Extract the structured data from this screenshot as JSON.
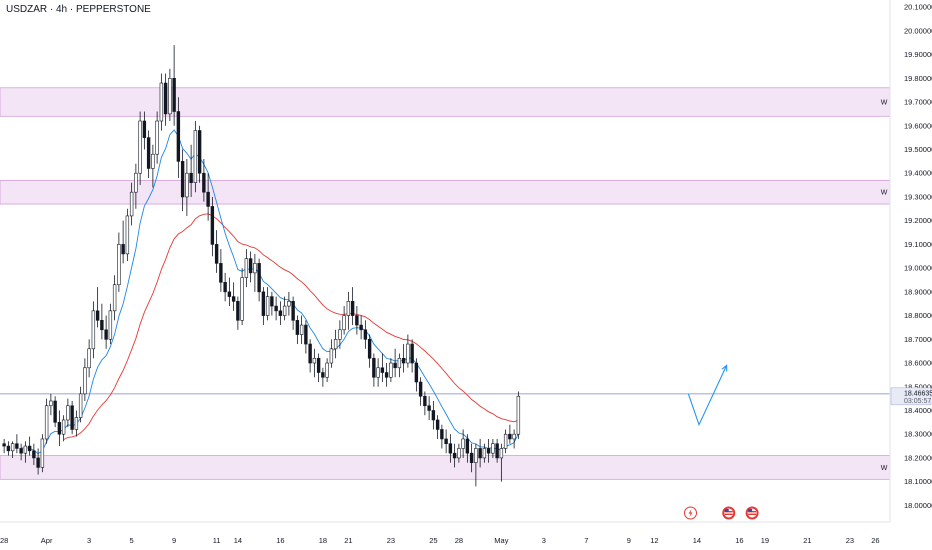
{
  "chart_data": {
    "type": "candlestick",
    "title": "USDZAR · 4h · PEPPERSTONE",
    "ylim": [
      17.93,
      20.13
    ],
    "y_ticks": [
      "20.10000",
      "20.00000",
      "19.90000",
      "19.80000",
      "19.70000",
      "19.60000",
      "19.50000",
      "19.40000",
      "19.30000",
      "19.20000",
      "19.10000",
      "19.00000",
      "18.90000",
      "18.80000",
      "18.70000",
      "18.60000",
      "18.50000",
      "18.40000",
      "18.30000",
      "18.20000",
      "18.10000",
      "18.00000"
    ],
    "x_ticks": [
      {
        "label": "28",
        "x": 0
      },
      {
        "label": "Apr",
        "x": 10
      },
      {
        "label": "3",
        "x": 20
      },
      {
        "label": "5",
        "x": 30
      },
      {
        "label": "9",
        "x": 40
      },
      {
        "label": "11",
        "x": 50
      },
      {
        "label": "14",
        "x": 55
      },
      {
        "label": "16",
        "x": 65
      },
      {
        "label": "18",
        "x": 75
      },
      {
        "label": "21",
        "x": 81
      },
      {
        "label": "23",
        "x": 91
      },
      {
        "label": "25",
        "x": 101
      },
      {
        "label": "28",
        "x": 107
      },
      {
        "label": "May",
        "x": 117
      },
      {
        "label": "3",
        "x": 127
      },
      {
        "label": "7",
        "x": 137
      },
      {
        "label": "9",
        "x": 147
      },
      {
        "label": "12",
        "x": 153
      },
      {
        "label": "14",
        "x": 163
      },
      {
        "label": "16",
        "x": 173
      },
      {
        "label": "19",
        "x": 179
      },
      {
        "label": "21",
        "x": 189
      },
      {
        "label": "23",
        "x": 199
      },
      {
        "label": "26",
        "x": 205
      }
    ],
    "zones": [
      {
        "low": 19.64,
        "high": 19.76,
        "label": "W"
      },
      {
        "low": 19.27,
        "high": 19.37,
        "label": "W"
      },
      {
        "low": 18.11,
        "high": 18.21,
        "label": "W"
      }
    ],
    "current_price": {
      "value": "18.46635",
      "countdown": "03:05:57",
      "level": 18.466
    },
    "horizontal_line": 18.47,
    "projection": [
      {
        "x": 161,
        "y": 18.47
      },
      {
        "x": 163.5,
        "y": 18.34
      },
      {
        "x": 170,
        "y": 18.59
      }
    ],
    "candles": [
      [
        18.26,
        18.28,
        18.22,
        18.25
      ],
      [
        18.25,
        18.27,
        18.21,
        18.23
      ],
      [
        18.23,
        18.27,
        18.2,
        18.26
      ],
      [
        18.26,
        18.3,
        18.22,
        18.24
      ],
      [
        18.24,
        18.26,
        18.19,
        18.22
      ],
      [
        18.22,
        18.27,
        18.18,
        18.25
      ],
      [
        18.25,
        18.29,
        18.21,
        18.23
      ],
      [
        18.23,
        18.26,
        18.17,
        18.2
      ],
      [
        18.2,
        18.24,
        18.13,
        18.16
      ],
      [
        18.16,
        18.3,
        18.14,
        18.28
      ],
      [
        18.28,
        18.45,
        18.26,
        18.42
      ],
      [
        18.42,
        18.47,
        18.38,
        18.44
      ],
      [
        18.44,
        18.46,
        18.33,
        18.35
      ],
      [
        18.35,
        18.4,
        18.25,
        18.3
      ],
      [
        18.3,
        18.38,
        18.27,
        18.36
      ],
      [
        18.36,
        18.45,
        18.33,
        18.42
      ],
      [
        18.42,
        18.44,
        18.3,
        18.32
      ],
      [
        18.32,
        18.4,
        18.29,
        18.37
      ],
      [
        18.37,
        18.5,
        18.35,
        18.47
      ],
      [
        18.47,
        18.62,
        18.44,
        18.58
      ],
      [
        18.58,
        18.7,
        18.54,
        18.66
      ],
      [
        18.66,
        18.86,
        18.62,
        18.82
      ],
      [
        18.82,
        18.92,
        18.75,
        18.78
      ],
      [
        18.78,
        18.85,
        18.7,
        18.74
      ],
      [
        18.74,
        18.8,
        18.66,
        18.7
      ],
      [
        18.7,
        18.85,
        18.68,
        18.82
      ],
      [
        18.82,
        18.97,
        18.78,
        18.93
      ],
      [
        18.93,
        19.15,
        18.9,
        19.1
      ],
      [
        19.1,
        19.2,
        19.02,
        19.06
      ],
      [
        19.06,
        19.25,
        19.03,
        19.22
      ],
      [
        19.22,
        19.36,
        19.18,
        19.32
      ],
      [
        19.32,
        19.44,
        19.25,
        19.4
      ],
      [
        19.4,
        19.66,
        19.35,
        19.62
      ],
      [
        19.62,
        19.66,
        19.5,
        19.55
      ],
      [
        19.55,
        19.58,
        19.38,
        19.42
      ],
      [
        19.42,
        19.52,
        19.34,
        19.48
      ],
      [
        19.48,
        19.66,
        19.44,
        19.62
      ],
      [
        19.62,
        19.82,
        19.58,
        19.78
      ],
      [
        19.78,
        19.82,
        19.6,
        19.65
      ],
      [
        19.65,
        19.84,
        19.62,
        19.8
      ],
      [
        19.8,
        19.94,
        19.6,
        19.66
      ],
      [
        19.66,
        19.72,
        19.38,
        19.45
      ],
      [
        19.45,
        19.5,
        19.24,
        19.3
      ],
      [
        19.3,
        19.46,
        19.22,
        19.4
      ],
      [
        19.4,
        19.52,
        19.3,
        19.36
      ],
      [
        19.36,
        19.62,
        19.32,
        19.58
      ],
      [
        19.58,
        19.6,
        19.36,
        19.4
      ],
      [
        19.4,
        19.46,
        19.28,
        19.32
      ],
      [
        19.32,
        19.4,
        19.2,
        19.26
      ],
      [
        19.26,
        19.3,
        19.05,
        19.1
      ],
      [
        19.1,
        19.16,
        18.98,
        19.02
      ],
      [
        19.02,
        19.08,
        18.9,
        18.94
      ],
      [
        18.94,
        18.98,
        18.86,
        18.9
      ],
      [
        18.9,
        18.96,
        18.84,
        18.88
      ],
      [
        18.88,
        18.94,
        18.82,
        18.86
      ],
      [
        18.86,
        18.88,
        18.74,
        18.78
      ],
      [
        18.78,
        19.0,
        18.76,
        18.96
      ],
      [
        18.96,
        19.08,
        18.92,
        19.04
      ],
      [
        19.04,
        19.07,
        18.94,
        18.98
      ],
      [
        18.98,
        19.06,
        18.9,
        19.02
      ],
      [
        19.02,
        19.04,
        18.86,
        18.9
      ],
      [
        18.9,
        18.92,
        18.76,
        18.8
      ],
      [
        18.8,
        18.92,
        18.78,
        18.88
      ],
      [
        18.88,
        18.9,
        18.8,
        18.84
      ],
      [
        18.84,
        18.88,
        18.78,
        18.82
      ],
      [
        18.82,
        18.86,
        18.76,
        18.8
      ],
      [
        18.8,
        18.88,
        18.78,
        18.84
      ],
      [
        18.84,
        18.9,
        18.8,
        18.86
      ],
      [
        18.86,
        18.88,
        18.74,
        18.78
      ],
      [
        18.78,
        18.8,
        18.68,
        18.72
      ],
      [
        18.72,
        18.8,
        18.68,
        18.76
      ],
      [
        18.76,
        18.78,
        18.64,
        18.68
      ],
      [
        18.68,
        18.7,
        18.56,
        18.6
      ],
      [
        18.6,
        18.66,
        18.54,
        18.62
      ],
      [
        18.62,
        18.64,
        18.52,
        18.56
      ],
      [
        18.56,
        18.58,
        18.5,
        18.54
      ],
      [
        18.54,
        18.62,
        18.52,
        18.6
      ],
      [
        18.6,
        18.7,
        18.58,
        18.66
      ],
      [
        18.66,
        18.74,
        18.62,
        18.7
      ],
      [
        18.7,
        18.78,
        18.66,
        18.74
      ],
      [
        18.74,
        18.84,
        18.72,
        18.8
      ],
      [
        18.8,
        18.9,
        18.74,
        18.86
      ],
      [
        18.86,
        18.92,
        18.76,
        18.8
      ],
      [
        18.8,
        18.84,
        18.72,
        18.76
      ],
      [
        18.76,
        18.8,
        18.7,
        18.74
      ],
      [
        18.74,
        18.78,
        18.66,
        18.7
      ],
      [
        18.7,
        18.72,
        18.58,
        18.62
      ],
      [
        18.62,
        18.64,
        18.5,
        18.54
      ],
      [
        18.54,
        18.62,
        18.5,
        18.58
      ],
      [
        18.58,
        18.64,
        18.52,
        18.56
      ],
      [
        18.56,
        18.6,
        18.5,
        18.54
      ],
      [
        18.54,
        18.62,
        18.52,
        18.6
      ],
      [
        18.6,
        18.66,
        18.54,
        18.58
      ],
      [
        18.58,
        18.64,
        18.54,
        18.62
      ],
      [
        18.62,
        18.68,
        18.56,
        18.6
      ],
      [
        18.6,
        18.72,
        18.58,
        18.68
      ],
      [
        18.68,
        18.7,
        18.56,
        18.6
      ],
      [
        18.6,
        18.62,
        18.48,
        18.52
      ],
      [
        18.52,
        18.54,
        18.42,
        18.46
      ],
      [
        18.46,
        18.48,
        18.38,
        18.42
      ],
      [
        18.42,
        18.46,
        18.36,
        18.4
      ],
      [
        18.4,
        18.44,
        18.32,
        18.36
      ],
      [
        18.36,
        18.38,
        18.28,
        18.32
      ],
      [
        18.32,
        18.34,
        18.24,
        18.28
      ],
      [
        18.28,
        18.32,
        18.22,
        18.26
      ],
      [
        18.26,
        18.3,
        18.18,
        18.22
      ],
      [
        18.22,
        18.26,
        18.16,
        18.2
      ],
      [
        18.2,
        18.26,
        18.18,
        18.24
      ],
      [
        18.24,
        18.32,
        18.2,
        18.28
      ],
      [
        18.28,
        18.3,
        18.18,
        18.22
      ],
      [
        18.22,
        18.26,
        18.14,
        18.18
      ],
      [
        18.18,
        18.26,
        18.08,
        18.24
      ],
      [
        18.24,
        18.28,
        18.16,
        18.2
      ],
      [
        18.2,
        18.26,
        18.18,
        18.24
      ],
      [
        18.24,
        18.28,
        18.18,
        18.22
      ],
      [
        18.22,
        18.28,
        18.2,
        18.26
      ],
      [
        18.26,
        18.28,
        18.18,
        18.2
      ],
      [
        18.2,
        18.26,
        18.1,
        18.24
      ],
      [
        18.24,
        18.32,
        18.22,
        18.3
      ],
      [
        18.3,
        18.34,
        18.26,
        18.28
      ],
      [
        18.28,
        18.32,
        18.24,
        18.3
      ],
      [
        18.3,
        18.48,
        18.28,
        18.46
      ]
    ],
    "ema_fast": [],
    "ema_slow": []
  }
}
